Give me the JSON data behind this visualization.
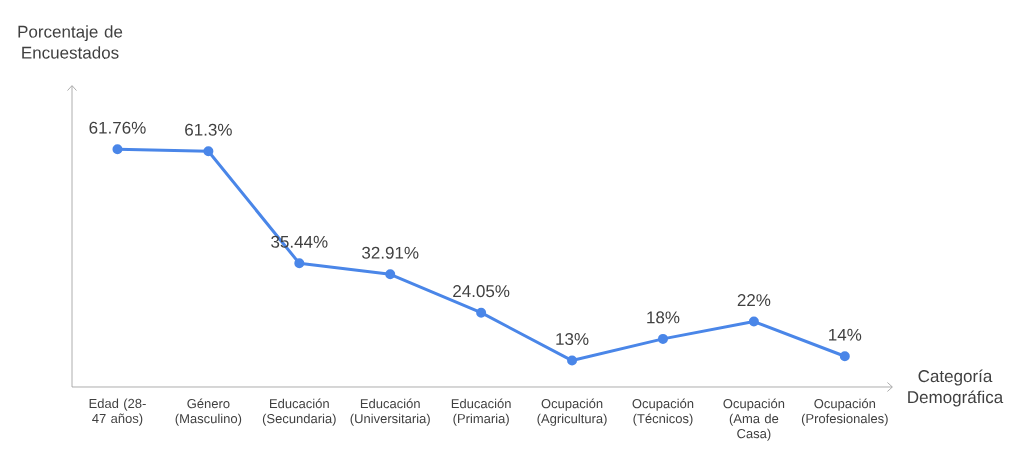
{
  "chart_data": {
    "type": "line",
    "xlabel": "Categoría Demográfica",
    "ylabel": "Porcentaje de Encuestados",
    "categories": [
      "Edad (28-47 años)",
      "Género (Masculino)",
      "Educación (Secundaria)",
      "Educación (Universitaria)",
      "Educación (Primaria)",
      "Ocupación (Agricultura)",
      "Ocupación (Técnicos)",
      "Ocupación (Ama de Casa)",
      "Ocupación (Profesionales)"
    ],
    "values": [
      61.76,
      61.3,
      35.44,
      32.91,
      24.05,
      13,
      18,
      22,
      14
    ],
    "value_labels": [
      "61.76%",
      "61.3%",
      "35.44%",
      "32.91%",
      "24.05%",
      "13%",
      "18%",
      "22%",
      "14%"
    ],
    "color": "#4a86e8",
    "ylim": [
      6.9,
      76.6
    ],
    "marker": "circle",
    "line_style": "solid"
  }
}
